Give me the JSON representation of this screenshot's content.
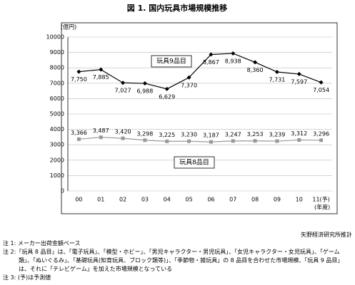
{
  "chart_data": {
    "type": "line",
    "title": "図 1. 国内玩具市場規模推移",
    "y_unit": "(億円)",
    "x_unit": "(年度)",
    "categories": [
      "00",
      "01",
      "02",
      "03",
      "04",
      "05",
      "06",
      "07",
      "08",
      "09",
      "10",
      "11(予)"
    ],
    "series": [
      {
        "name": "玩具9品目",
        "color": "#000000",
        "values": [
          7750,
          7885,
          7027,
          6988,
          6629,
          7370,
          8867,
          8938,
          8360,
          7731,
          7597,
          7054
        ],
        "value_labels": [
          "7,750",
          "7,885",
          "7,027",
          "6,988",
          "6,629",
          "7,370",
          "8,867",
          "8,938",
          "8,360",
          "7,731",
          "7,597",
          "7,054"
        ]
      },
      {
        "name": "玩具8品目",
        "color": "#999999",
        "values": [
          3366,
          3487,
          3420,
          3298,
          3225,
          3230,
          3187,
          3247,
          3253,
          3239,
          3312,
          3296
        ],
        "value_labels": [
          "3,366",
          "3,487",
          "3,420",
          "3,298",
          "3,225",
          "3,230",
          "3,187",
          "3,247",
          "3,253",
          "3,239",
          "3,312",
          "3,296"
        ]
      }
    ],
    "ylim": [
      0,
      10000
    ],
    "yticks": [
      0,
      1000,
      2000,
      3000,
      4000,
      5000,
      6000,
      7000,
      8000,
      9000,
      10000
    ],
    "grid": true
  },
  "source": "矢野経済研究所推計",
  "notes": [
    "注 1: メーカー出荷金額ベース",
    "注 2:「玩具 8 品目」は、「電子玩具」、「模型・ホビー」、「男児キャラクター・男児玩具」、「女児キャラクター・女児玩具」、「ゲーム類」、「ぬいぐるみ」、「基礎玩具(知育玩具、ブロック類等)」、「季節物・雑玩具」の 8 品目を合わせた市場規模、「玩具 9 品目」は、それに「テレビゲーム」を加えた市場規模となっている",
    "注 3: (予)は予測値"
  ]
}
